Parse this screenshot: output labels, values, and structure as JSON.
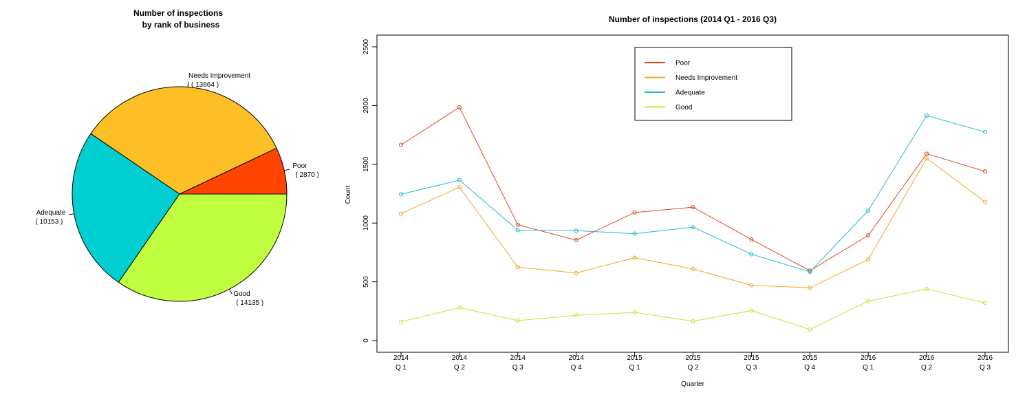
{
  "chart_data": [
    {
      "type": "pie",
      "title_lines": [
        "Number of inspections",
        "by rank of business"
      ],
      "slices": [
        {
          "label": "Poor",
          "value": 2870,
          "value_text": "( 2870 )",
          "color": "#ff4500"
        },
        {
          "label": "Needs Improvement",
          "value": 13664,
          "value_text": "( 13664 )",
          "color": "#fcbf26"
        },
        {
          "label": "Adequate",
          "value": 10153,
          "value_text": "( 10153 )",
          "color": "#00ced1"
        },
        {
          "label": "Good",
          "value": 14135,
          "value_text": "( 14135 )",
          "color": "#bfff3f"
        }
      ]
    },
    {
      "type": "line",
      "title": "Number of inspections (2014 Q1 - 2016 Q3)",
      "xlabel": "Quarter",
      "ylabel": "Count",
      "ylim": [
        0,
        2500
      ],
      "yticks": [
        0,
        500,
        1000,
        1500,
        2000,
        2500
      ],
      "categories": [
        {
          "year": "2014",
          "q": "Q 1"
        },
        {
          "year": "2014",
          "q": "Q 2"
        },
        {
          "year": "2014",
          "q": "Q 3"
        },
        {
          "year": "2014",
          "q": "Q 4"
        },
        {
          "year": "2015",
          "q": "Q 1"
        },
        {
          "year": "2015",
          "q": "Q 2"
        },
        {
          "year": "2015",
          "q": "Q 3"
        },
        {
          "year": "2015",
          "q": "Q 4"
        },
        {
          "year": "2016",
          "q": "Q 1"
        },
        {
          "year": "2016",
          "q": "Q 2"
        },
        {
          "year": "2016",
          "q": "Q 3"
        }
      ],
      "legend_position": "top-center",
      "series": [
        {
          "name": "Poor",
          "color": "#e8431c",
          "values": [
            1665,
            1985,
            985,
            855,
            1090,
            1135,
            860,
            595,
            895,
            1590,
            1440
          ]
        },
        {
          "name": "Needs Improvement",
          "color": "#f5a623",
          "values": [
            1080,
            1305,
            625,
            575,
            705,
            610,
            470,
            450,
            690,
            1550,
            1180
          ]
        },
        {
          "name": "Adequate",
          "color": "#1fbcd2",
          "values": [
            1245,
            1365,
            940,
            935,
            910,
            965,
            735,
            585,
            1105,
            1915,
            1775
          ]
        },
        {
          "name": "Good",
          "color": "#b4ec37",
          "values": [
            160,
            280,
            170,
            215,
            240,
            165,
            255,
            95,
            335,
            440,
            320
          ]
        }
      ]
    }
  ]
}
